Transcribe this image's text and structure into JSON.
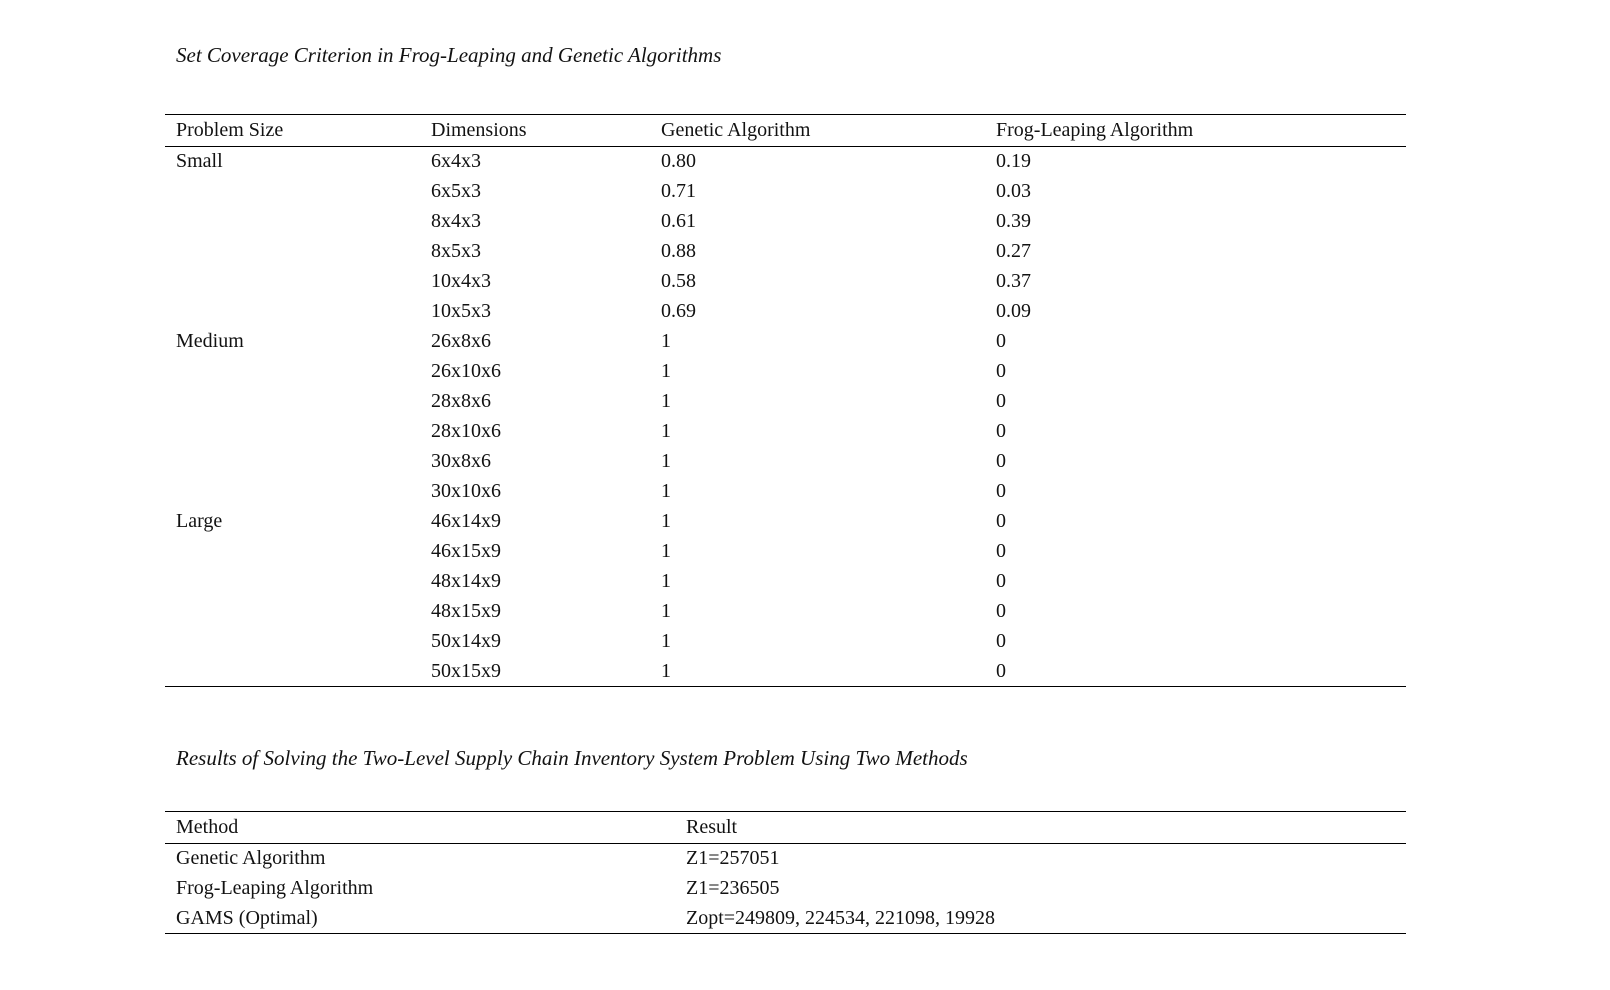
{
  "page": {
    "background_color": "#ffffff",
    "text_color": "#121212"
  },
  "table1": {
    "title": "Set Coverage Criterion in Frog-Leaping and Genetic Algorithms",
    "columns": [
      "Problem Size",
      "Dimensions",
      "Genetic Algorithm",
      "Frog-Leaping Algorithm"
    ],
    "rows": [
      {
        "size": "Small",
        "dims": "6x4x3",
        "ga": "0.80",
        "fla": "0.19"
      },
      {
        "size": "",
        "dims": "6x5x3",
        "ga": "0.71",
        "fla": "0.03"
      },
      {
        "size": "",
        "dims": "8x4x3",
        "ga": "0.61",
        "fla": "0.39"
      },
      {
        "size": "",
        "dims": "8x5x3",
        "ga": "0.88",
        "fla": "0.27"
      },
      {
        "size": "",
        "dims": "10x4x3",
        "ga": "0.58",
        "fla": "0.37"
      },
      {
        "size": "",
        "dims": "10x5x3",
        "ga": "0.69",
        "fla": "0.09"
      },
      {
        "size": "Medium",
        "dims": "26x8x6",
        "ga": "1",
        "fla": "0"
      },
      {
        "size": "",
        "dims": "26x10x6",
        "ga": "1",
        "fla": "0"
      },
      {
        "size": "",
        "dims": "28x8x6",
        "ga": "1",
        "fla": "0"
      },
      {
        "size": "",
        "dims": "28x10x6",
        "ga": "1",
        "fla": "0"
      },
      {
        "size": "",
        "dims": "30x8x6",
        "ga": "1",
        "fla": "0"
      },
      {
        "size": "",
        "dims": "30x10x6",
        "ga": "1",
        "fla": "0"
      },
      {
        "size": "Large",
        "dims": "46x14x9",
        "ga": "1",
        "fla": "0"
      },
      {
        "size": "",
        "dims": "46x15x9",
        "ga": "1",
        "fla": "0"
      },
      {
        "size": "",
        "dims": "48x14x9",
        "ga": "1",
        "fla": "0"
      },
      {
        "size": "",
        "dims": "48x15x9",
        "ga": "1",
        "fla": "0"
      },
      {
        "size": "",
        "dims": "50x14x9",
        "ga": "1",
        "fla": "0"
      },
      {
        "size": "",
        "dims": "50x15x9",
        "ga": "1",
        "fla": "0"
      }
    ]
  },
  "table2": {
    "title": "Results of Solving the Two-Level Supply Chain Inventory System Problem Using Two Methods",
    "columns": [
      "Method",
      "Result"
    ],
    "rows": [
      {
        "method": "Genetic Algorithm",
        "result": "Z1=257051"
      },
      {
        "method": "Frog-Leaping Algorithm",
        "result": "Z1=236505"
      },
      {
        "method": "GAMS (Optimal)",
        "result": "Zopt=249809, 224534, 221098, 19928"
      }
    ]
  }
}
